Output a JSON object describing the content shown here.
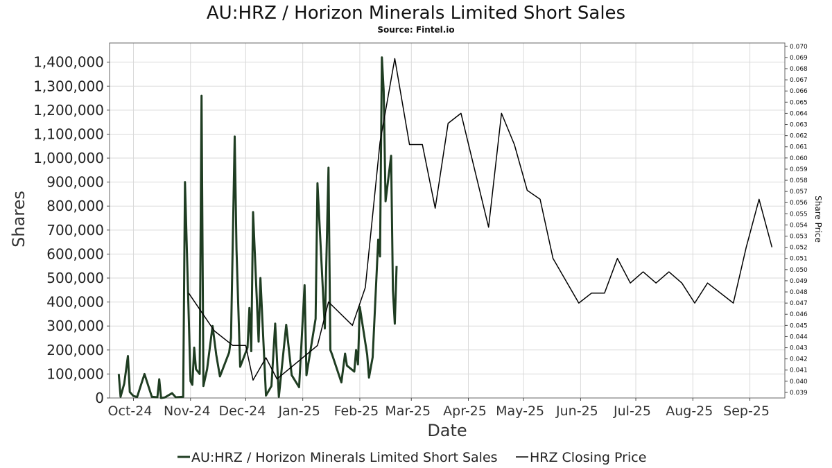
{
  "chart_data": {
    "type": "line",
    "title": "AU:HRZ / Horizon Minerals Limited Short Sales",
    "subtitle": "Source: Fintel.io",
    "xlabel": "Date",
    "ylabel": "Shares",
    "ylabel_right": "Share Price",
    "x_ticks": [
      "Oct-24",
      "Nov-24",
      "Dec-24",
      "Jan-25",
      "Feb-25",
      "Mar-25",
      "Apr-25",
      "May-25",
      "Jun-25",
      "Jul-25",
      "Aug-25",
      "Sep-25"
    ],
    "y_ticks_left": [
      "0",
      "100,000",
      "200,000",
      "300,000",
      "400,000",
      "500,000",
      "600,000",
      "700,000",
      "800,000",
      "900,000",
      "1,000,000",
      "1,100,000",
      "1,200,000",
      "1,300,000",
      "1,400,000"
    ],
    "y_ticks_right": [
      "0.039",
      "0.040",
      "0.041",
      "0.042",
      "0.043",
      "0.044",
      "0.045",
      "0.046",
      "0.047",
      "0.048",
      "0.049",
      "0.050",
      "0.051",
      "0.052",
      "0.053",
      "0.054",
      "0.055",
      "0.056",
      "0.057",
      "0.058",
      "0.059",
      "0.060",
      "0.061",
      "0.062",
      "0.063",
      "0.064",
      "0.065",
      "0.066",
      "0.067",
      "0.068",
      "0.069",
      "0.070"
    ],
    "ylim_left": [
      0,
      1480000
    ],
    "ylim_right": [
      0.0385,
      0.0703
    ],
    "grid": true,
    "legend_placement": "bottom",
    "series": [
      {
        "name": "AU:HRZ / Horizon Minerals Limited Short Sales",
        "axis": "left",
        "color": "#1f3d22",
        "points": [
          [
            "2024-09-23",
            100000
          ],
          [
            "2024-09-24",
            5000
          ],
          [
            "2024-09-26",
            60000
          ],
          [
            "2024-09-28",
            175000
          ],
          [
            "2024-09-29",
            25000
          ],
          [
            "2024-10-01",
            8000
          ],
          [
            "2024-10-03",
            4000
          ],
          [
            "2024-10-07",
            100000
          ],
          [
            "2024-10-11",
            5000
          ],
          [
            "2024-10-14",
            3000
          ],
          [
            "2024-10-15",
            78000
          ],
          [
            "2024-10-16",
            0
          ],
          [
            "2024-10-18",
            2000
          ],
          [
            "2024-10-22",
            20000
          ],
          [
            "2024-10-24",
            3000
          ],
          [
            "2024-10-28",
            5000
          ],
          [
            "2024-10-29",
            900000
          ],
          [
            "2024-11-01",
            70000
          ],
          [
            "2024-11-02",
            55000
          ],
          [
            "2024-11-03",
            210000
          ],
          [
            "2024-11-04",
            120000
          ],
          [
            "2024-11-06",
            100000
          ],
          [
            "2024-11-07",
            1260000
          ],
          [
            "2024-11-08",
            50000
          ],
          [
            "2024-11-10",
            120000
          ],
          [
            "2024-11-13",
            300000
          ],
          [
            "2024-11-15",
            180000
          ],
          [
            "2024-11-17",
            90000
          ],
          [
            "2024-11-22",
            190000
          ],
          [
            "2024-11-23",
            250000
          ],
          [
            "2024-11-25",
            1090000
          ],
          [
            "2024-11-26",
            620000
          ],
          [
            "2024-11-28",
            130000
          ],
          [
            "2024-12-02",
            210000
          ],
          [
            "2024-12-03",
            375000
          ],
          [
            "2024-12-04",
            195000
          ],
          [
            "2024-12-05",
            775000
          ],
          [
            "2024-12-08",
            235000
          ],
          [
            "2024-12-09",
            500000
          ],
          [
            "2024-12-12",
            10000
          ],
          [
            "2024-12-15",
            50000
          ],
          [
            "2024-12-17",
            310000
          ],
          [
            "2024-12-19",
            5000
          ],
          [
            "2024-12-23",
            305000
          ],
          [
            "2024-12-26",
            95000
          ],
          [
            "2024-12-30",
            45000
          ],
          [
            "2025-01-02",
            470000
          ],
          [
            "2025-01-03",
            95000
          ],
          [
            "2025-01-08",
            330000
          ],
          [
            "2025-01-09",
            895000
          ],
          [
            "2025-01-13",
            290000
          ],
          [
            "2025-01-15",
            960000
          ],
          [
            "2025-01-16",
            200000
          ],
          [
            "2025-01-17",
            180000
          ],
          [
            "2025-01-22",
            65000
          ],
          [
            "2025-01-24",
            185000
          ],
          [
            "2025-01-25",
            135000
          ],
          [
            "2025-01-29",
            110000
          ],
          [
            "2025-01-30",
            200000
          ],
          [
            "2025-01-31",
            140000
          ],
          [
            "2025-02-01",
            380000
          ],
          [
            "2025-02-05",
            180000
          ],
          [
            "2025-02-06",
            85000
          ],
          [
            "2025-02-08",
            170000
          ],
          [
            "2025-02-11",
            660000
          ],
          [
            "2025-02-12",
            590000
          ],
          [
            "2025-02-13",
            1420000
          ],
          [
            "2025-02-14",
            1280000
          ],
          [
            "2025-02-15",
            820000
          ],
          [
            "2025-02-18",
            1010000
          ],
          [
            "2025-02-19",
            450000
          ],
          [
            "2025-02-20",
            310000
          ],
          [
            "2025-02-21",
            550000
          ]
        ]
      },
      {
        "name": "HRZ Closing Price",
        "axis": "right",
        "color": "#000000",
        "points": [
          [
            "2024-10-31",
            0.0479
          ],
          [
            "2024-11-14",
            0.0445
          ],
          [
            "2024-11-24",
            0.0432
          ],
          [
            "2024-12-01",
            0.0432
          ],
          [
            "2024-12-05",
            0.0401
          ],
          [
            "2024-12-12",
            0.0421
          ],
          [
            "2024-12-18",
            0.0402
          ],
          [
            "2025-01-09",
            0.0432
          ],
          [
            "2025-01-15",
            0.0471
          ],
          [
            "2025-01-28",
            0.045
          ],
          [
            "2025-02-04",
            0.0484
          ],
          [
            "2025-02-12",
            0.0614
          ],
          [
            "2025-02-20",
            0.0689
          ],
          [
            "2025-02-28",
            0.0612
          ],
          [
            "2025-03-07",
            0.0612
          ],
          [
            "2025-03-14",
            0.0555
          ],
          [
            "2025-03-21",
            0.0631
          ],
          [
            "2025-03-28",
            0.064
          ],
          [
            "2025-04-12",
            0.0538
          ],
          [
            "2025-04-19",
            0.064
          ],
          [
            "2025-04-26",
            0.0612
          ],
          [
            "2025-05-03",
            0.0571
          ],
          [
            "2025-05-10",
            0.0563
          ],
          [
            "2025-05-17",
            0.051
          ],
          [
            "2025-05-31",
            0.047
          ],
          [
            "2025-06-07",
            0.0479
          ],
          [
            "2025-06-14",
            0.0479
          ],
          [
            "2025-06-21",
            0.051
          ],
          [
            "2025-06-28",
            0.0488
          ],
          [
            "2025-07-05",
            0.0498
          ],
          [
            "2025-07-12",
            0.0488
          ],
          [
            "2025-07-19",
            0.0498
          ],
          [
            "2025-07-26",
            0.0488
          ],
          [
            "2025-08-02",
            0.047
          ],
          [
            "2025-08-09",
            0.0488
          ],
          [
            "2025-08-23",
            0.047
          ],
          [
            "2025-08-30",
            0.052
          ],
          [
            "2025-09-06",
            0.0563
          ],
          [
            "2025-09-13",
            0.052
          ]
        ]
      }
    ]
  }
}
